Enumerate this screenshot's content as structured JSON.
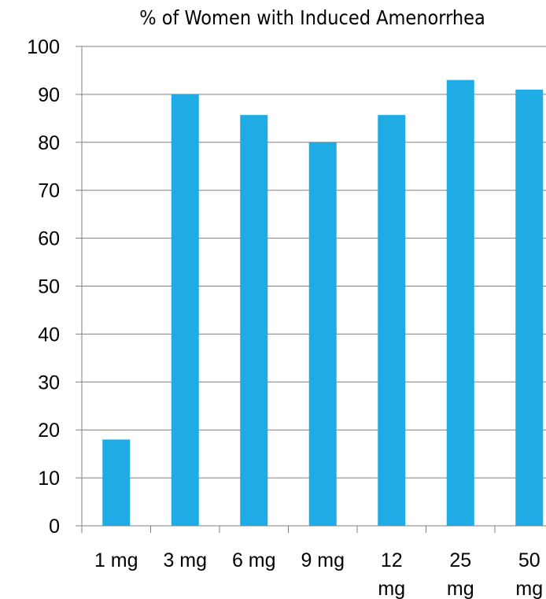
{
  "chart_data": {
    "type": "bar",
    "title": "% of Women with Induced Amenorrhea",
    "categories": [
      [
        "1 mg"
      ],
      [
        "3 mg"
      ],
      [
        "6 mg"
      ],
      [
        "9 mg"
      ],
      [
        "12",
        "mg"
      ],
      [
        "25",
        "mg"
      ],
      [
        "50",
        "mg"
      ]
    ],
    "values": [
      18,
      90,
      85.7,
      80,
      85.7,
      93,
      91
    ],
    "ylim": [
      0,
      100
    ],
    "yticks": [
      0,
      10,
      20,
      30,
      40,
      50,
      60,
      70,
      80,
      90,
      100
    ],
    "grid": true,
    "legend": "none",
    "colors": {
      "bar": "#1fabe3",
      "axis": "#7f7f7f",
      "grid": "#7f7f7f"
    }
  }
}
